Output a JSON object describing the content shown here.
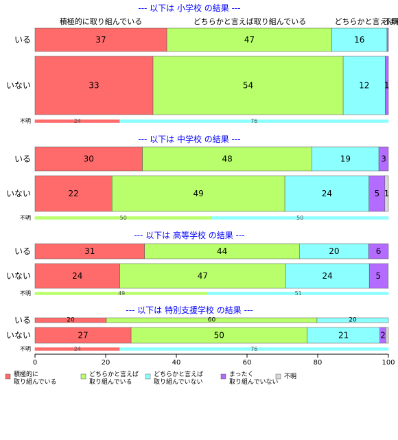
{
  "colors": {
    "heading": "#0000FF",
    "categories": [
      "#FF6B6B",
      "#B8FF6B",
      "#8CFFFF",
      "#B46BFF",
      "#D9D9D9"
    ]
  },
  "legend_labels": [
    [
      "積極的に",
      "取り組んでいる"
    ],
    [
      "どちらかと言えば",
      "取り組んでいる"
    ],
    [
      "どちらかと言えば",
      "取り組んでいない"
    ],
    [
      "まったく",
      "取り組んでいない"
    ],
    [
      "不明"
    ]
  ],
  "top_header_labels": [
    "積極的に取り組んでいる",
    "どちらかと言えば取り組んでいる",
    "どちらかと言えば取",
    "不明"
  ],
  "chart_data": {
    "type": "bar",
    "orientation": "horizontal",
    "stacked": true,
    "percent": true,
    "xlim": [
      0,
      100
    ],
    "xticks": [
      0,
      20,
      40,
      60,
      80,
      100
    ],
    "categories": [
      "積極的に取り組んでいる",
      "どちらかと言えば取り組んでいる",
      "どちらかと言えば取り組んでいない",
      "まったく取り組んでいない",
      "不明"
    ],
    "panels": [
      {
        "title": "--- 以下は 小学校 の結果 ---",
        "rows": [
          {
            "label": "いる",
            "values": [
              37.3,
              46.7,
              15.6,
              0.4,
              0
            ],
            "shown": [
              "37",
              "47",
              "16",
              "",
              ""
            ]
          },
          {
            "label": "いない",
            "values": [
              33.4,
              53.8,
              11.9,
              0.9,
              0
            ],
            "shown": [
              "33",
              "54",
              "12",
              "1",
              ""
            ]
          },
          {
            "label": "不明",
            "values": [
              24,
              0,
              76,
              0,
              0
            ],
            "shown": [
              "24",
              "",
              "76",
              "",
              ""
            ]
          }
        ]
      },
      {
        "title": "--- 以下は 中学校 の結果 ---",
        "rows": [
          {
            "label": "いる",
            "values": [
              30.4,
              48.0,
              18.9,
              2.7,
              0
            ],
            "shown": [
              "30",
              "48",
              "19",
              "3",
              ""
            ]
          },
          {
            "label": "いない",
            "values": [
              21.8,
              48.9,
              23.8,
              4.5,
              1.0
            ],
            "shown": [
              "22",
              "49",
              "24",
              "5",
              "1"
            ]
          },
          {
            "label": "不明",
            "values": [
              0,
              50,
              50,
              0,
              0
            ],
            "shown": [
              "",
              "50",
              "50",
              "",
              ""
            ]
          }
        ]
      },
      {
        "title": "--- 以下は 高等学校 の結果 ---",
        "rows": [
          {
            "label": "いる",
            "values": [
              31.0,
              43.9,
              19.5,
              5.6,
              0
            ],
            "shown": [
              "31",
              "44",
              "20",
              "6",
              ""
            ]
          },
          {
            "label": "いない",
            "values": [
              24.0,
              46.9,
              23.7,
              5.1,
              0.3
            ],
            "shown": [
              "24",
              "47",
              "24",
              "5",
              ""
            ]
          },
          {
            "label": "不明",
            "values": [
              0,
              49,
              51,
              0,
              0
            ],
            "shown": [
              "",
              "49",
              "51",
              "",
              ""
            ]
          }
        ]
      },
      {
        "title": "--- 以下は 特別支援学校 の結果 ---",
        "rows": [
          {
            "label": "いる",
            "values": [
              20.2,
              59.6,
              20.2,
              0,
              0
            ],
            "shown": [
              "20",
              "60",
              "20",
              "",
              ""
            ]
          },
          {
            "label": "いない",
            "values": [
              27.2,
              49.8,
              20.6,
              1.7,
              0.7
            ],
            "shown": [
              "27",
              "50",
              "21",
              "2",
              ""
            ]
          },
          {
            "label": "不明",
            "values": [
              24,
              0,
              76,
              0,
              0
            ],
            "shown": [
              "24",
              "",
              "76",
              "",
              ""
            ]
          }
        ]
      }
    ]
  }
}
